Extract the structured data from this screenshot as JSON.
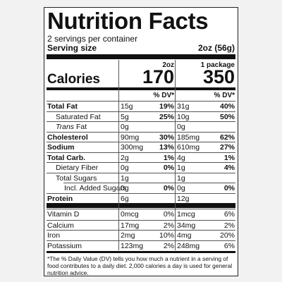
{
  "title": "Nutrition Facts",
  "servings": "2 servings per container",
  "serving_size": {
    "label": "Serving size",
    "value": "2oz (56g)"
  },
  "columns": [
    "2oz",
    "1 package"
  ],
  "calories": {
    "label": "Calories",
    "values": [
      "170",
      "350"
    ]
  },
  "dv_header": [
    "% DV*",
    "% DV*"
  ],
  "nutrients": [
    {
      "name": "Total Fat",
      "bold": true,
      "indent": 0,
      "cells": [
        [
          "15g",
          "19%"
        ],
        [
          "31g",
          "40%"
        ]
      ]
    },
    {
      "name": "Saturated Fat",
      "bold": false,
      "indent": 1,
      "cells": [
        [
          "5g",
          "25%"
        ],
        [
          "10g",
          "50%"
        ]
      ]
    },
    {
      "name_italic": "Trans",
      "name": " Fat",
      "bold": false,
      "indent": 1,
      "cells": [
        [
          "0g"
        ],
        [
          "0g"
        ]
      ]
    },
    {
      "name": "Cholesterol",
      "bold": true,
      "indent": 0,
      "cells": [
        [
          "90mg",
          "30%"
        ],
        [
          "185mg",
          "62%"
        ]
      ]
    },
    {
      "name": "Sodium",
      "bold": true,
      "indent": 0,
      "cells": [
        [
          "300mg",
          "13%"
        ],
        [
          "610mg",
          "27%"
        ]
      ]
    },
    {
      "name": "Total Carb.",
      "bold": true,
      "indent": 0,
      "cells": [
        [
          "2g",
          "1%"
        ],
        [
          "4g",
          "1%"
        ]
      ]
    },
    {
      "name": "Dietary Fiber",
      "bold": false,
      "indent": 1,
      "cells": [
        [
          "0g",
          "0%"
        ],
        [
          "1g",
          "4%"
        ]
      ]
    },
    {
      "name": "Total Sugars",
      "bold": false,
      "indent": 1,
      "cells": [
        [
          "1g"
        ],
        [
          "1g"
        ]
      ]
    },
    {
      "name": "Incl. Added Sugars",
      "bold": false,
      "indent": 2,
      "cells": [
        [
          "0g",
          "0%"
        ],
        [
          "0g",
          "0%"
        ]
      ]
    },
    {
      "name": "Protein",
      "bold": true,
      "indent": 0,
      "cells": [
        [
          "6g"
        ],
        [
          "12g"
        ]
      ]
    }
  ],
  "vitamins": [
    {
      "name": "Vitamin D",
      "cells": [
        [
          "0mcg",
          "0%"
        ],
        [
          "1mcg",
          "6%"
        ]
      ]
    },
    {
      "name": "Calcium",
      "cells": [
        [
          "17mg",
          "2%"
        ],
        [
          "34mg",
          "2%"
        ]
      ]
    },
    {
      "name": "Iron",
      "cells": [
        [
          "2mg",
          "10%"
        ],
        [
          "4mg",
          "20%"
        ]
      ]
    },
    {
      "name": "Potassium",
      "cells": [
        [
          "123mg",
          "2%"
        ],
        [
          "248mg",
          "6%"
        ]
      ]
    }
  ],
  "footnote": "*The % Daily Value (DV) tells you how much a nutrient in a serving of food contributes to a daily diet. 2,000 calories a day is used for general nutrition advice."
}
